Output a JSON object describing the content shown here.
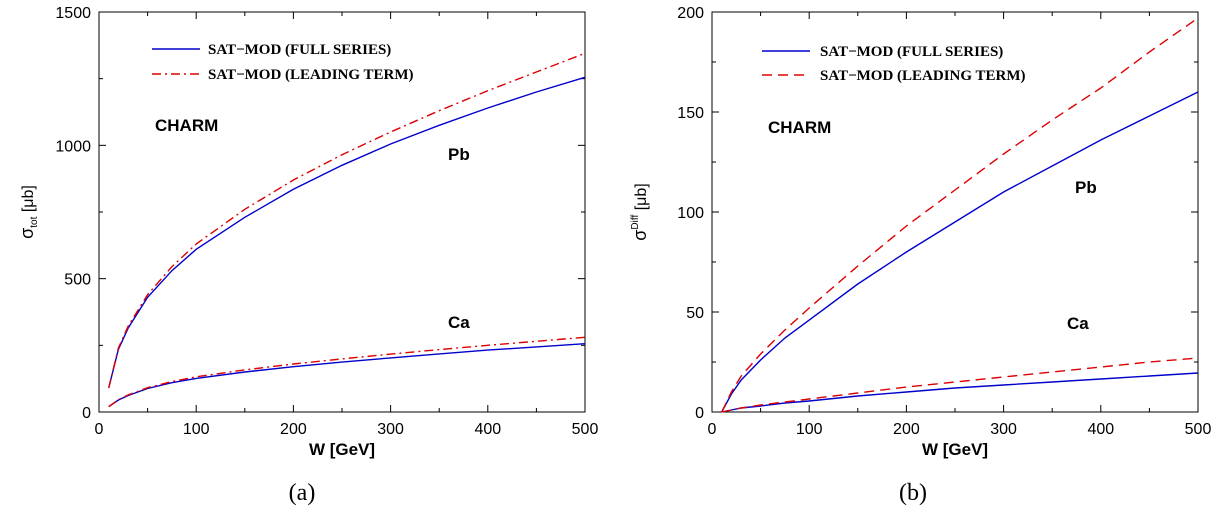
{
  "colors": {
    "full_series": "#0000cc",
    "leading_term": "#dd0000"
  },
  "chart_data": [
    {
      "type": "line",
      "caption": "(a)",
      "xlabel": "W [GeV]",
      "ylabel_main": "σ",
      "ylabel_sub": "tot",
      "ylabel_unit": "[μb]",
      "xlim": [
        0,
        500
      ],
      "ylim": [
        0,
        1500
      ],
      "xticks": [
        0,
        100,
        200,
        300,
        400,
        500
      ],
      "yticks": [
        0,
        500,
        1000,
        1500
      ],
      "grid": false,
      "legend_position": "top-left",
      "leading_dash": "dash-dot",
      "annotations": [
        "CHARM",
        "Pb",
        "Ca"
      ],
      "series": [
        {
          "name": "SAT−MOD (FULL SERIES)",
          "style": "full_series",
          "x": [
            10,
            20,
            30,
            50,
            75,
            100,
            150,
            200,
            250,
            300,
            350,
            400,
            450,
            500
          ],
          "y": [
            90,
            235,
            315,
            430,
            530,
            610,
            730,
            835,
            925,
            1005,
            1075,
            1140,
            1200,
            1255
          ]
        },
        {
          "name": "SAT−MOD (LEADING TERM)",
          "style": "leading_term",
          "x": [
            10,
            20,
            30,
            50,
            75,
            100,
            150,
            200,
            250,
            300,
            350,
            400,
            450,
            500
          ],
          "y": [
            90,
            240,
            322,
            440,
            545,
            630,
            760,
            870,
            965,
            1050,
            1130,
            1205,
            1275,
            1345
          ]
        },
        {
          "name": "",
          "style": "full_series",
          "x": [
            10,
            20,
            30,
            50,
            75,
            100,
            150,
            200,
            250,
            300,
            350,
            400,
            450,
            500
          ],
          "y": [
            20,
            45,
            62,
            88,
            110,
            126,
            150,
            170,
            187,
            203,
            218,
            232,
            244,
            256
          ]
        },
        {
          "name": "",
          "style": "leading_term",
          "x": [
            10,
            20,
            30,
            50,
            75,
            100,
            150,
            200,
            250,
            300,
            350,
            400,
            450,
            500
          ],
          "y": [
            20,
            46,
            64,
            91,
            114,
            132,
            158,
            180,
            199,
            217,
            234,
            250,
            265,
            280
          ]
        }
      ]
    },
    {
      "type": "line",
      "caption": "(b)",
      "xlabel": "W [GeV]",
      "ylabel_main": "σ",
      "ylabel_sub": "Diff",
      "ylabel_unit": "[μb]",
      "xlim": [
        0,
        500
      ],
      "ylim": [
        0,
        200
      ],
      "xticks": [
        0,
        100,
        200,
        300,
        400,
        500
      ],
      "yticks": [
        0,
        50,
        100,
        150,
        200
      ],
      "grid": false,
      "legend_position": "top-left",
      "leading_dash": "dash",
      "annotations": [
        "CHARM",
        "Pb",
        "Ca"
      ],
      "series": [
        {
          "name": "SAT−MOD (FULL SERIES)",
          "style": "full_series",
          "x": [
            10,
            20,
            30,
            50,
            75,
            100,
            150,
            200,
            250,
            300,
            350,
            400,
            450,
            500
          ],
          "y": [
            0,
            9,
            16,
            26,
            37,
            46,
            64,
            80,
            95,
            110,
            123,
            136,
            148,
            160
          ]
        },
        {
          "name": "SAT−MOD (LEADING TERM)",
          "style": "leading_term",
          "x": [
            10,
            20,
            30,
            50,
            75,
            100,
            150,
            200,
            250,
            300,
            350,
            400,
            450,
            500
          ],
          "y": [
            0,
            10,
            18,
            29,
            41,
            52,
            73,
            93,
            111,
            129,
            146,
            162,
            180,
            197
          ]
        },
        {
          "name": "",
          "style": "full_series",
          "x": [
            10,
            20,
            30,
            50,
            75,
            100,
            150,
            200,
            250,
            300,
            350,
            400,
            450,
            500
          ],
          "y": [
            0,
            1,
            2,
            3,
            4.5,
            5.5,
            8,
            10,
            12,
            13.5,
            15,
            16.5,
            18,
            19.5
          ]
        },
        {
          "name": "",
          "style": "leading_term",
          "x": [
            10,
            20,
            30,
            50,
            75,
            100,
            150,
            200,
            250,
            300,
            350,
            400,
            450,
            500
          ],
          "y": [
            0,
            1,
            2,
            3.5,
            5,
            6.5,
            9.5,
            12.5,
            15,
            17.5,
            20,
            22.5,
            25,
            27
          ]
        }
      ]
    }
  ]
}
